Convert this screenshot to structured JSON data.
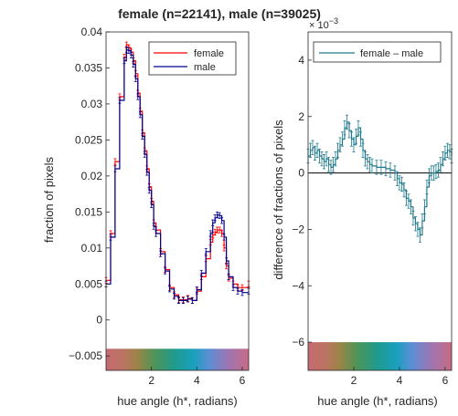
{
  "figure_title": "female (n=22141), male (n=39025)",
  "chart_data": [
    {
      "type": "line",
      "xlabel": "hue angle (h*, radians)",
      "ylabel": "fraction of pixels",
      "xlim": [
        0,
        6.283
      ],
      "ylim": [
        -0.007,
        0.04
      ],
      "xticks": [
        2,
        4,
        6
      ],
      "xtick_labels": [
        "2",
        "4",
        "6"
      ],
      "yticks": [
        -0.005,
        0,
        0.005,
        0.01,
        0.015,
        0.02,
        0.025,
        0.03,
        0.035,
        0.04
      ],
      "ytick_labels": [
        "−0.005",
        "0",
        "0.005",
        "0.01",
        "0.015",
        "0.02",
        "0.025",
        "0.03",
        "0.035",
        "0.04"
      ],
      "hue_strip": [
        -0.007,
        -0.004
      ],
      "grid": false,
      "legend_position": "top-right",
      "series": [
        {
          "name": "female",
          "color": "#ff0000",
          "x": [
            0.0,
            0.2,
            0.4,
            0.6,
            0.8,
            0.9,
            1.0,
            1.1,
            1.2,
            1.3,
            1.4,
            1.5,
            1.6,
            1.7,
            1.8,
            1.9,
            2.0,
            2.1,
            2.2,
            2.4,
            2.6,
            2.8,
            3.0,
            3.2,
            3.4,
            3.6,
            3.8,
            4.0,
            4.2,
            4.4,
            4.6,
            4.7,
            4.8,
            4.9,
            5.0,
            5.1,
            5.2,
            5.3,
            5.4,
            5.6,
            5.8,
            6.0,
            6.283
          ],
          "y": [
            0.0055,
            0.012,
            0.022,
            0.031,
            0.0365,
            0.0382,
            0.0378,
            0.0372,
            0.036,
            0.0342,
            0.0315,
            0.029,
            0.026,
            0.0235,
            0.021,
            0.0185,
            0.0165,
            0.0135,
            0.0125,
            0.0095,
            0.007,
            0.0045,
            0.0035,
            0.0028,
            0.0028,
            0.003,
            0.0027,
            0.004,
            0.006,
            0.0085,
            0.0108,
            0.0118,
            0.0122,
            0.0125,
            0.0125,
            0.012,
            0.01,
            0.0075,
            0.0058,
            0.005,
            0.0045,
            0.0045,
            0.005
          ]
        },
        {
          "name": "male",
          "color": "#00008b",
          "x": [
            0.0,
            0.2,
            0.4,
            0.6,
            0.8,
            0.9,
            1.0,
            1.1,
            1.2,
            1.3,
            1.4,
            1.5,
            1.6,
            1.7,
            1.8,
            1.9,
            2.0,
            2.1,
            2.2,
            2.4,
            2.6,
            2.8,
            3.0,
            3.2,
            3.4,
            3.6,
            3.8,
            4.0,
            4.2,
            4.4,
            4.6,
            4.7,
            4.8,
            4.9,
            5.0,
            5.1,
            5.2,
            5.3,
            5.4,
            5.6,
            5.8,
            6.0,
            6.283
          ],
          "y": [
            0.005,
            0.0115,
            0.021,
            0.0305,
            0.036,
            0.0375,
            0.0374,
            0.0368,
            0.0355,
            0.0335,
            0.031,
            0.0285,
            0.0255,
            0.023,
            0.0205,
            0.018,
            0.016,
            0.013,
            0.012,
            0.0092,
            0.0068,
            0.0043,
            0.0033,
            0.0027,
            0.0027,
            0.0029,
            0.0027,
            0.0042,
            0.0065,
            0.0095,
            0.012,
            0.0135,
            0.0142,
            0.0146,
            0.0145,
            0.0138,
            0.0115,
            0.0082,
            0.006,
            0.0045,
            0.004,
            0.0038,
            0.004
          ]
        }
      ]
    },
    {
      "type": "line",
      "xlabel": "hue angle (h*, radians)",
      "ylabel": "difference of fractions of pixels",
      "exponent_label": "× 10",
      "exponent_value": "−3",
      "xlim": [
        0,
        6.283
      ],
      "ylim": [
        -7,
        5
      ],
      "xticks": [
        2,
        4,
        6
      ],
      "xtick_labels": [
        "2",
        "4",
        "6"
      ],
      "yticks": [
        -6,
        -4,
        -2,
        0,
        2,
        4
      ],
      "ytick_labels": [
        "−6",
        "−4",
        "−2",
        "0",
        "2",
        "4"
      ],
      "hue_strip": [
        -7,
        -6
      ],
      "zero_line": 0,
      "grid": false,
      "legend_position": "top",
      "series": [
        {
          "name": "female – male",
          "color": "#1f7a8c",
          "x": [
            0.0,
            0.1,
            0.2,
            0.3,
            0.4,
            0.5,
            0.6,
            0.7,
            0.8,
            0.9,
            1.0,
            1.1,
            1.2,
            1.3,
            1.4,
            1.5,
            1.6,
            1.7,
            1.8,
            1.9,
            2.0,
            2.1,
            2.2,
            2.3,
            2.4,
            2.5,
            2.6,
            2.7,
            2.8,
            3.0,
            3.2,
            3.4,
            3.6,
            3.8,
            3.9,
            4.0,
            4.1,
            4.2,
            4.3,
            4.4,
            4.5,
            4.6,
            4.7,
            4.8,
            4.9,
            5.0,
            5.1,
            5.2,
            5.3,
            5.4,
            5.5,
            5.6,
            5.7,
            5.8,
            5.9,
            6.0,
            6.1,
            6.2,
            6.283
          ],
          "y": [
            0.6,
            0.8,
            0.9,
            0.7,
            0.8,
            0.6,
            0.5,
            0.4,
            0.5,
            0.3,
            0.2,
            0.3,
            0.5,
            0.8,
            1.0,
            1.2,
            1.6,
            1.8,
            1.5,
            1.2,
            1.0,
            1.3,
            1.6,
            1.2,
            0.8,
            0.5,
            0.4,
            0.3,
            0.25,
            0.2,
            0.2,
            0.15,
            0.1,
            0.0,
            -0.2,
            -0.35,
            -0.4,
            -0.6,
            -0.9,
            -1.0,
            -1.2,
            -1.6,
            -1.8,
            -2.0,
            -2.2,
            -1.7,
            -1.2,
            -0.5,
            -0.1,
            0.0,
            0.0,
            0.05,
            0.1,
            0.3,
            0.5,
            0.7,
            0.8,
            0.75,
            0.6
          ]
        }
      ]
    }
  ]
}
